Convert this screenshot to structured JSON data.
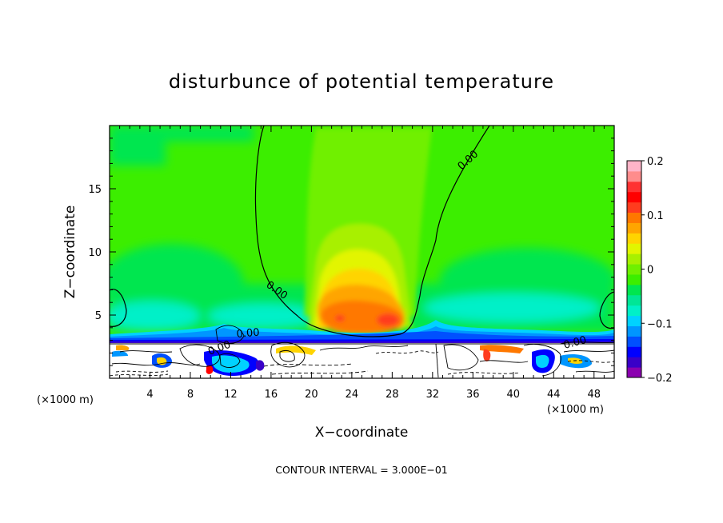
{
  "chart_data": {
    "type": "heatmap",
    "title": "disturbunce of potential temperature",
    "xlabel": "X−coordinate",
    "ylabel": "Z−coordinate",
    "x_unit": "(×1000 m)",
    "y_unit": "(×1000 m)",
    "footer": "CONTOUR INTERVAL = 3.000E−01",
    "xlim": [
      0,
      50
    ],
    "ylim": [
      0,
      20
    ],
    "x_ticks": [
      4,
      8,
      12,
      16,
      20,
      24,
      28,
      32,
      36,
      40,
      44,
      48
    ],
    "y_ticks": [
      5,
      10,
      15
    ],
    "contour_label": "0.00",
    "colorbar": {
      "min": -0.2,
      "max": 0.2,
      "ticks": [
        0.2,
        0.1,
        0,
        -0.1,
        -0.2
      ],
      "tick_labels": [
        "0.2",
        "0.1",
        "0",
        "−0.1",
        "−0.2"
      ],
      "colors": [
        "#8b00b0",
        "#3a00c8",
        "#0000ff",
        "#0050ff",
        "#0096ff",
        "#00d2ff",
        "#00f0c8",
        "#00e696",
        "#00e650",
        "#3cee00",
        "#70f000",
        "#a8f000",
        "#e2f500",
        "#ffd400",
        "#ffa500",
        "#ff7800",
        "#ff3c1e",
        "#ff0000",
        "#ff3232",
        "#ff8c8c",
        "#ffb4c8"
      ]
    },
    "warm_anomaly": {
      "x_center": 26,
      "z_peak": 4.5,
      "max_value": 0.1
    },
    "cold_layer_z": 3.3
  }
}
